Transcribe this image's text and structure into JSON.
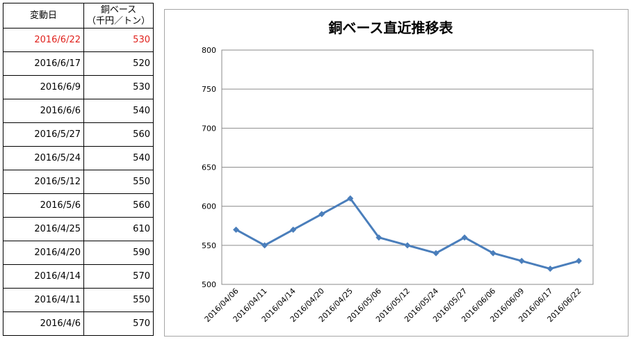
{
  "table": {
    "header_date": "変動日",
    "header_price_line1": "銅ベース",
    "header_price_line2": "（千円／トン）",
    "highlight_color": "#e0211c",
    "rows": [
      {
        "date": "2016/6/22",
        "price": "530"
      },
      {
        "date": "2016/6/17",
        "price": "520"
      },
      {
        "date": "2016/6/9",
        "price": "530"
      },
      {
        "date": "2016/6/6",
        "price": "540"
      },
      {
        "date": "2016/5/27",
        "price": "560"
      },
      {
        "date": "2016/5/24",
        "price": "540"
      },
      {
        "date": "2016/5/12",
        "price": "550"
      },
      {
        "date": "2016/5/6",
        "price": "560"
      },
      {
        "date": "2016/4/25",
        "price": "610"
      },
      {
        "date": "2016/4/20",
        "price": "590"
      },
      {
        "date": "2016/4/14",
        "price": "570"
      },
      {
        "date": "2016/4/11",
        "price": "550"
      },
      {
        "date": "2016/4/6",
        "price": "570"
      }
    ]
  },
  "chart_data": {
    "type": "line",
    "title": "銅ベース直近推移表",
    "xlabel": "",
    "ylabel": "",
    "ylim": [
      500,
      800
    ],
    "yticks": [
      "500",
      "550",
      "600",
      "650",
      "700",
      "750",
      "800"
    ],
    "grid": true,
    "legend": "none",
    "categories": [
      "2016/04/06",
      "2016/04/11",
      "2016/04/14",
      "2016/04/20",
      "2016/04/25",
      "2016/05/06",
      "2016/05/12",
      "2016/05/24",
      "2016/05/27",
      "2016/06/06",
      "2016/06/09",
      "2016/06/17",
      "2016/06/22"
    ],
    "series": [
      {
        "color": "#4a7ebb",
        "values": [
          570,
          550,
          570,
          590,
          610,
          560,
          550,
          540,
          560,
          540,
          530,
          520,
          530
        ]
      }
    ]
  }
}
